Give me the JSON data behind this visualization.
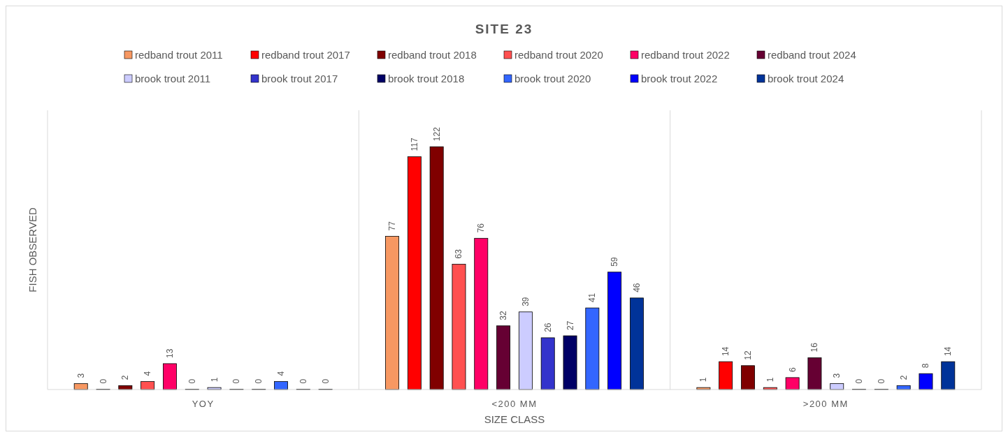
{
  "chart_data": {
    "type": "bar",
    "title": "SITE 23",
    "xlabel": "SIZE CLASS",
    "ylabel": "FISH OBSERVED",
    "categories": [
      "YOY",
      "<200 MM",
      ">200 MM"
    ],
    "legend": "top",
    "data_labels": true,
    "series": [
      {
        "name": "redband trout 2011",
        "color": "#f79862",
        "values": [
          3,
          77,
          1
        ]
      },
      {
        "name": "redband trout 2017",
        "color": "#ff0000",
        "values": [
          0,
          117,
          14
        ]
      },
      {
        "name": "redband trout 2018",
        "color": "#800000",
        "values": [
          2,
          122,
          12
        ]
      },
      {
        "name": "redband trout 2020",
        "color": "#ff5050",
        "values": [
          4,
          63,
          1
        ]
      },
      {
        "name": "redband trout 2022",
        "color": "#ff0066",
        "values": [
          13,
          76,
          6
        ]
      },
      {
        "name": "redband trout 2024",
        "color": "#660033",
        "values": [
          0,
          32,
          16
        ]
      },
      {
        "name": "brook trout 2011",
        "color": "#ccccff",
        "values": [
          1,
          39,
          3
        ]
      },
      {
        "name": "brook trout 2017",
        "color": "#3333cc",
        "values": [
          0,
          26,
          0
        ]
      },
      {
        "name": "brook trout 2018",
        "color": "#000066",
        "values": [
          0,
          27,
          0
        ]
      },
      {
        "name": "brook trout 2020",
        "color": "#3366ff",
        "values": [
          4,
          41,
          2
        ]
      },
      {
        "name": "brook trout 2022",
        "color": "#0000ff",
        "values": [
          0,
          59,
          8
        ]
      },
      {
        "name": "brook trout 2024",
        "color": "#003399",
        "values": [
          0,
          46,
          14
        ]
      }
    ]
  }
}
